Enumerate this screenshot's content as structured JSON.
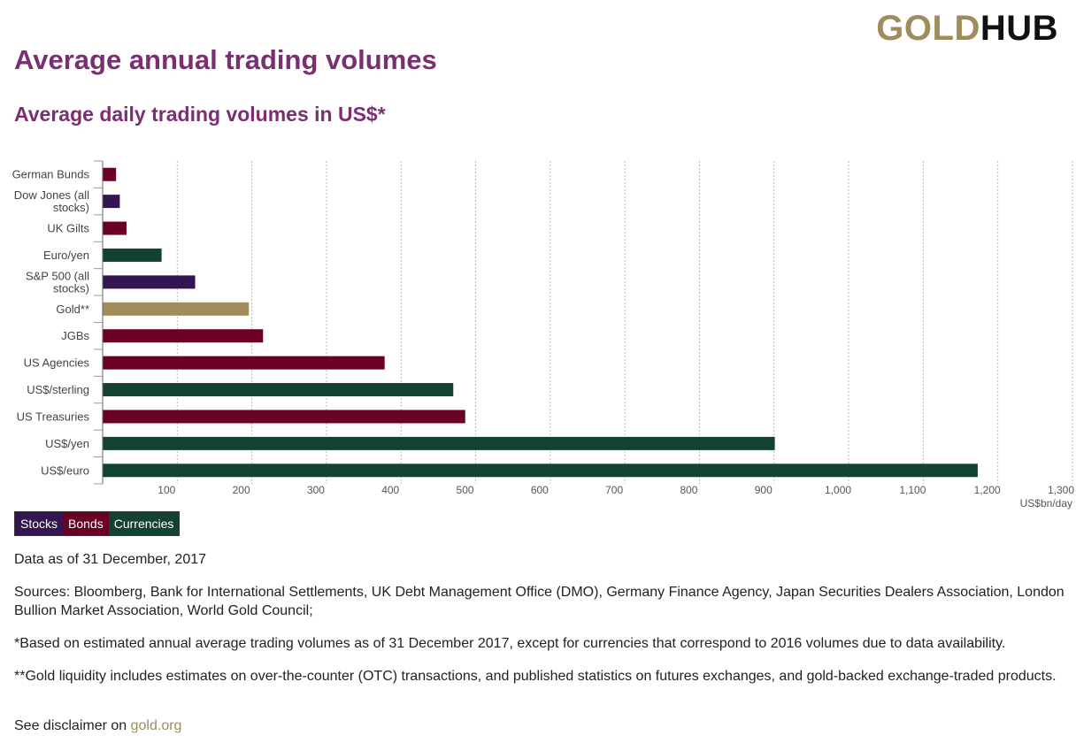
{
  "logo": {
    "part1": "GOLD",
    "part2": "HUB"
  },
  "title": "Average annual trading volumes",
  "subtitle": "Average daily trading volumes in US$*",
  "legend": [
    {
      "label": "Stocks",
      "color": "#33164f"
    },
    {
      "label": "Bonds",
      "color": "#6a0022"
    },
    {
      "label": "Currencies",
      "color": "#124233"
    }
  ],
  "notes": {
    "data_as_of": "Data as of 31 December, 2017",
    "sources": "Sources: Bloomberg, Bank for International Settlements, UK Debt Management Office (DMO), Germany Finance Agency, Japan Securities Dealers Association, London Bullion Market Association, World Gold Council;",
    "footnote1": "*Based on estimated annual average trading volumes as of 31 December 2017, except for currencies that correspond to 2016 volumes due to data availability.",
    "footnote2": "**Gold liquidity includes estimates on over-the-counter (OTC) transactions, and published statistics on futures exchanges, and gold-backed exchange-traded products."
  },
  "disclaimer": {
    "prefix": "See disclaimer on",
    "link": "gold.org"
  },
  "chart_data": {
    "type": "bar",
    "orientation": "horizontal",
    "xlabel": "US$bn/day",
    "xlim": [
      0,
      1300
    ],
    "xticks": [
      100,
      200,
      300,
      400,
      500,
      600,
      700,
      800,
      900,
      1000,
      1100,
      1200,
      1300
    ],
    "xtick_labels": [
      "100",
      "200",
      "300",
      "400",
      "500",
      "600",
      "700",
      "800",
      "900",
      "1,000",
      "1,100",
      "1,200",
      "1,300"
    ],
    "grid": true,
    "categories": [
      "German Bunds",
      "Dow Jones (all stocks)",
      "UK Gilts",
      "Euro/yen",
      "S&P 500 (all stocks)",
      "Gold**",
      "JGBs",
      "US Agencies",
      "US$/sterling",
      "US Treasuries",
      "US$/yen",
      "US$/euro"
    ],
    "category_lines": [
      [
        "German Bunds"
      ],
      [
        "Dow Jones (all",
        "stocks)"
      ],
      [
        "UK Gilts"
      ],
      [
        "Euro/yen"
      ],
      [
        "S&P 500 (all",
        "stocks)"
      ],
      [
        "Gold**"
      ],
      [
        "JGBs"
      ],
      [
        "US Agencies"
      ],
      [
        "US$/sterling"
      ],
      [
        "US Treasuries"
      ],
      [
        "US$/yen"
      ],
      [
        "US$/euro"
      ]
    ],
    "values": [
      18,
      23,
      32,
      79,
      124,
      196,
      215,
      378,
      470,
      486,
      901,
      1173
    ],
    "groups": [
      "Bonds",
      "Stocks",
      "Bonds",
      "Currencies",
      "Stocks",
      "Gold",
      "Bonds",
      "Bonds",
      "Currencies",
      "Bonds",
      "Currencies",
      "Currencies"
    ],
    "colors": {
      "Stocks": "#33164f",
      "Bonds": "#6a0022",
      "Currencies": "#124233",
      "Gold": "#a08c5b"
    }
  }
}
